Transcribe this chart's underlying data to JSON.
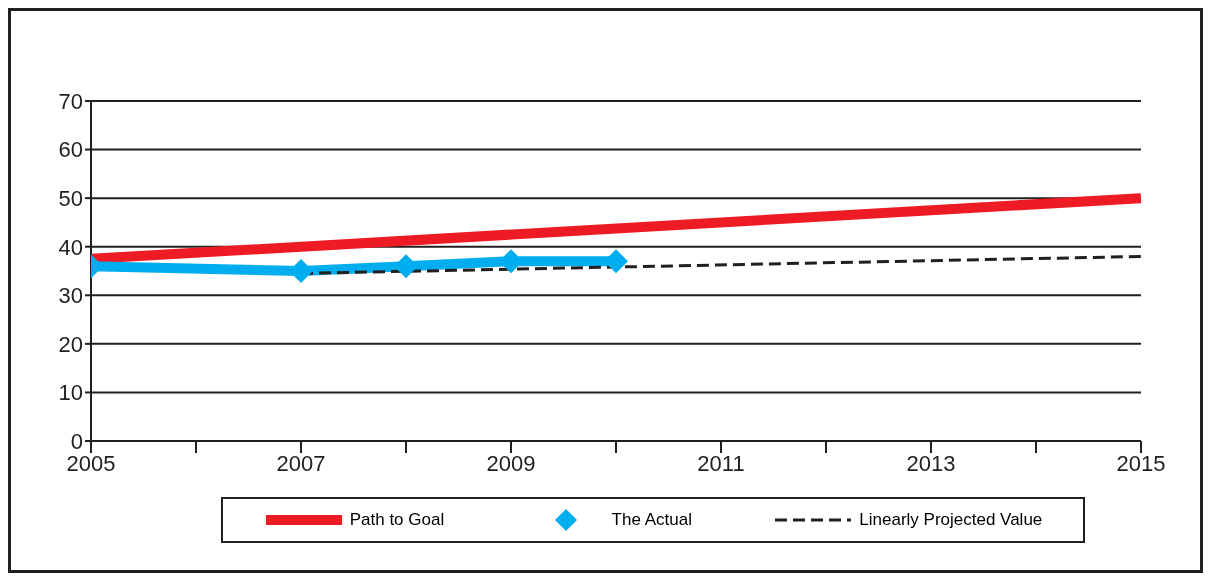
{
  "chart_data": {
    "type": "line",
    "series": [
      {
        "name": "Path to Goal",
        "color": "#ed1c24",
        "x": [
          2005,
          2015
        ],
        "values": [
          37.5,
          50
        ],
        "marker": "none",
        "line_style": "solid"
      },
      {
        "name": "The Actual",
        "color": "#00aeef",
        "x": [
          2005,
          2007,
          2008,
          2009,
          2010
        ],
        "values": [
          36,
          35,
          36,
          37,
          37
        ],
        "marker": "diamond",
        "line_style": "solid"
      },
      {
        "name": "Linearly Projected Value",
        "color": "#231f20",
        "x": [
          2007,
          2015
        ],
        "values": [
          34.5,
          38
        ],
        "marker": "none",
        "line_style": "dashed"
      }
    ],
    "xlim": [
      2005,
      2015
    ],
    "xticks": [
      2005,
      {
        "value": 2006,
        "label": null
      },
      2007,
      {
        "value": 2008,
        "label": null
      },
      2009,
      {
        "value": 2010,
        "label": null
      },
      2011,
      {
        "value": 2012,
        "label": null
      },
      2013,
      {
        "value": 2014,
        "label": null
      },
      2015
    ],
    "ylim": [
      0,
      70
    ],
    "yticks": [
      0,
      10,
      20,
      30,
      40,
      50,
      60,
      70
    ],
    "grid": "y",
    "legend": "bottom"
  }
}
